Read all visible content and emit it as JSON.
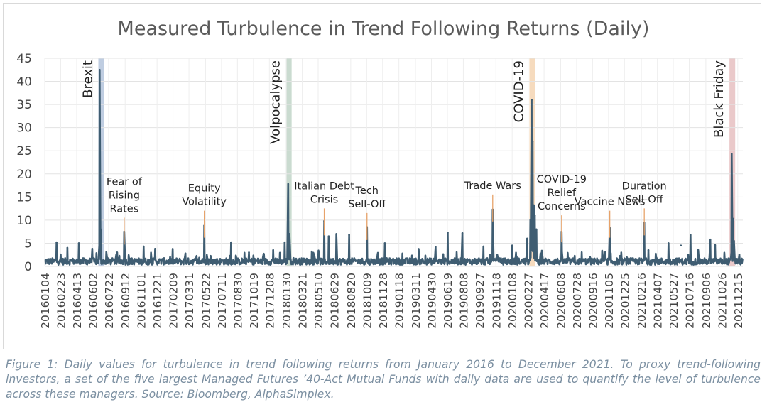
{
  "chart_data": {
    "type": "line",
    "title": "Measured Turbulence in Trend Following Returns (Daily)",
    "xlabel": "",
    "ylabel": "",
    "ylim": [
      0,
      45
    ],
    "y_ticks": [
      0,
      5,
      10,
      15,
      20,
      25,
      30,
      35,
      40,
      45
    ],
    "x_range": [
      "2016-01-04",
      "2021-12-31"
    ],
    "x_tick_labels": [
      "20160104",
      "20160223",
      "20160413",
      "20160602",
      "20160722",
      "20160912",
      "20161101",
      "20161221",
      "20170209",
      "20170331",
      "20170522",
      "20170711",
      "20170830",
      "20171019",
      "20171208",
      "20180130",
      "20180321",
      "20180510",
      "20180629",
      "20180820",
      "20181009",
      "20181128",
      "20190118",
      "20190311",
      "20190430",
      "20190619",
      "20190808",
      "20190927",
      "20191118",
      "20200108",
      "20200227",
      "20200417",
      "20200608",
      "20200728",
      "20200916",
      "20201105",
      "20201225",
      "20210216",
      "20210407",
      "20210527",
      "20210716",
      "20210906",
      "20211026",
      "20211215"
    ],
    "grid": true,
    "series_color": "#3f5d72",
    "series": [
      {
        "name": "Turbulence",
        "baseline_level": 1.2,
        "spikes": [
          {
            "date": "2016-02-10",
            "value": 5.2
          },
          {
            "date": "2016-03-15",
            "value": 4.0
          },
          {
            "date": "2016-04-20",
            "value": 5.0
          },
          {
            "date": "2016-06-01",
            "value": 3.8
          },
          {
            "date": "2016-06-24",
            "value": 42.5
          },
          {
            "date": "2016-06-28",
            "value": 8.0
          },
          {
            "date": "2016-09-09",
            "value": 7.5
          },
          {
            "date": "2016-11-09",
            "value": 4.3
          },
          {
            "date": "2016-12-15",
            "value": 3.8
          },
          {
            "date": "2017-03-20",
            "value": 2.8
          },
          {
            "date": "2017-05-18",
            "value": 8.8
          },
          {
            "date": "2017-08-10",
            "value": 5.2
          },
          {
            "date": "2017-10-05",
            "value": 3.0
          },
          {
            "date": "2017-12-20",
            "value": 3.5
          },
          {
            "date": "2018-01-25",
            "value": 5.2
          },
          {
            "date": "2018-02-05",
            "value": 17.8
          },
          {
            "date": "2018-02-09",
            "value": 7.0
          },
          {
            "date": "2018-05-29",
            "value": 9.8
          },
          {
            "date": "2018-06-12",
            "value": 6.5
          },
          {
            "date": "2018-07-06",
            "value": 7.0
          },
          {
            "date": "2018-08-15",
            "value": 6.8
          },
          {
            "date": "2018-10-10",
            "value": 8.5
          },
          {
            "date": "2018-12-05",
            "value": 5.0
          },
          {
            "date": "2019-05-13",
            "value": 4.2
          },
          {
            "date": "2019-06-20",
            "value": 7.3
          },
          {
            "date": "2019-08-05",
            "value": 7.2
          },
          {
            "date": "2019-10-10",
            "value": 4.3
          },
          {
            "date": "2019-11-08",
            "value": 12.3
          },
          {
            "date": "2020-01-08",
            "value": 4.5
          },
          {
            "date": "2020-02-24",
            "value": 6.0
          },
          {
            "date": "2020-03-05",
            "value": 10.0
          },
          {
            "date": "2020-03-09",
            "value": 36.0
          },
          {
            "date": "2020-03-12",
            "value": 27.0
          },
          {
            "date": "2020-03-16",
            "value": 13.2
          },
          {
            "date": "2020-03-19",
            "value": 11.0
          },
          {
            "date": "2020-03-24",
            "value": 8.0
          },
          {
            "date": "2020-04-06",
            "value": 2.8
          },
          {
            "date": "2020-06-11",
            "value": 7.5
          },
          {
            "date": "2020-09-08",
            "value": 2.0
          },
          {
            "date": "2020-11-09",
            "value": 8.3
          },
          {
            "date": "2021-02-25",
            "value": 9.4
          },
          {
            "date": "2021-03-10",
            "value": 3.5
          },
          {
            "date": "2021-05-12",
            "value": 5.0
          },
          {
            "date": "2021-06-20",
            "value": 4.5
          },
          {
            "date": "2021-07-20",
            "value": 6.8
          },
          {
            "date": "2021-09-20",
            "value": 5.8
          },
          {
            "date": "2021-10-05",
            "value": 4.6
          },
          {
            "date": "2021-11-26",
            "value": 24.3
          },
          {
            "date": "2021-11-30",
            "value": 10.3
          },
          {
            "date": "2021-12-03",
            "value": 5.5
          },
          {
            "date": "2021-12-20",
            "value": 2.5
          }
        ]
      }
    ],
    "highlight_bands": [
      {
        "label": "Brexit",
        "start": "2016-06-20",
        "end": "2016-07-06",
        "color": "#b8c8de"
      },
      {
        "label": "Volpocalypse",
        "start": "2018-01-29",
        "end": "2018-02-15",
        "color": "#c4d7cb"
      },
      {
        "label": "COVID-19",
        "start": "2020-03-02",
        "end": "2020-03-20",
        "color": "#f5d7b7"
      },
      {
        "label": "Black Friday",
        "start": "2021-11-19",
        "end": "2021-12-07",
        "color": "#e8c3c4"
      }
    ],
    "annotations": [
      {
        "lines": [
          "Fear of",
          "Rising",
          "Rates"
        ],
        "date": "2016-09-09",
        "pointer_to": 9
      },
      {
        "lines": [
          "Equity",
          "Volatility"
        ],
        "date": "2017-05-18",
        "pointer_to": 10.5
      },
      {
        "lines": [
          "Italian Debt",
          "Crisis"
        ],
        "date": "2018-05-29",
        "pointer_to": 11
      },
      {
        "lines": [
          "Tech",
          "Sell-Off"
        ],
        "date": "2018-10-10",
        "pointer_to": 10
      },
      {
        "lines": [
          "Trade Wars"
        ],
        "date": "2019-11-08",
        "pointer_to": 14
      },
      {
        "lines": [
          "COVID-19",
          "Relief",
          "Concerns"
        ],
        "date": "2020-06-11",
        "pointer_to": 9.5
      },
      {
        "lines": [
          "Vaccine News"
        ],
        "date": "2020-11-09",
        "pointer_to": 10.5
      },
      {
        "lines": [
          "Duration",
          "Sell-Off"
        ],
        "date": "2021-02-25",
        "pointer_to": 11
      }
    ]
  },
  "caption": "Figure 1: Daily values for turbulence in trend following returns from January 2016 to December 2021. To proxy trend-following investors, a set of the five largest Managed Futures ’40-Act Mutual Funds with daily data are used to quantify the level of turbulence across these managers. Source: Bloomberg, AlphaSimplex."
}
